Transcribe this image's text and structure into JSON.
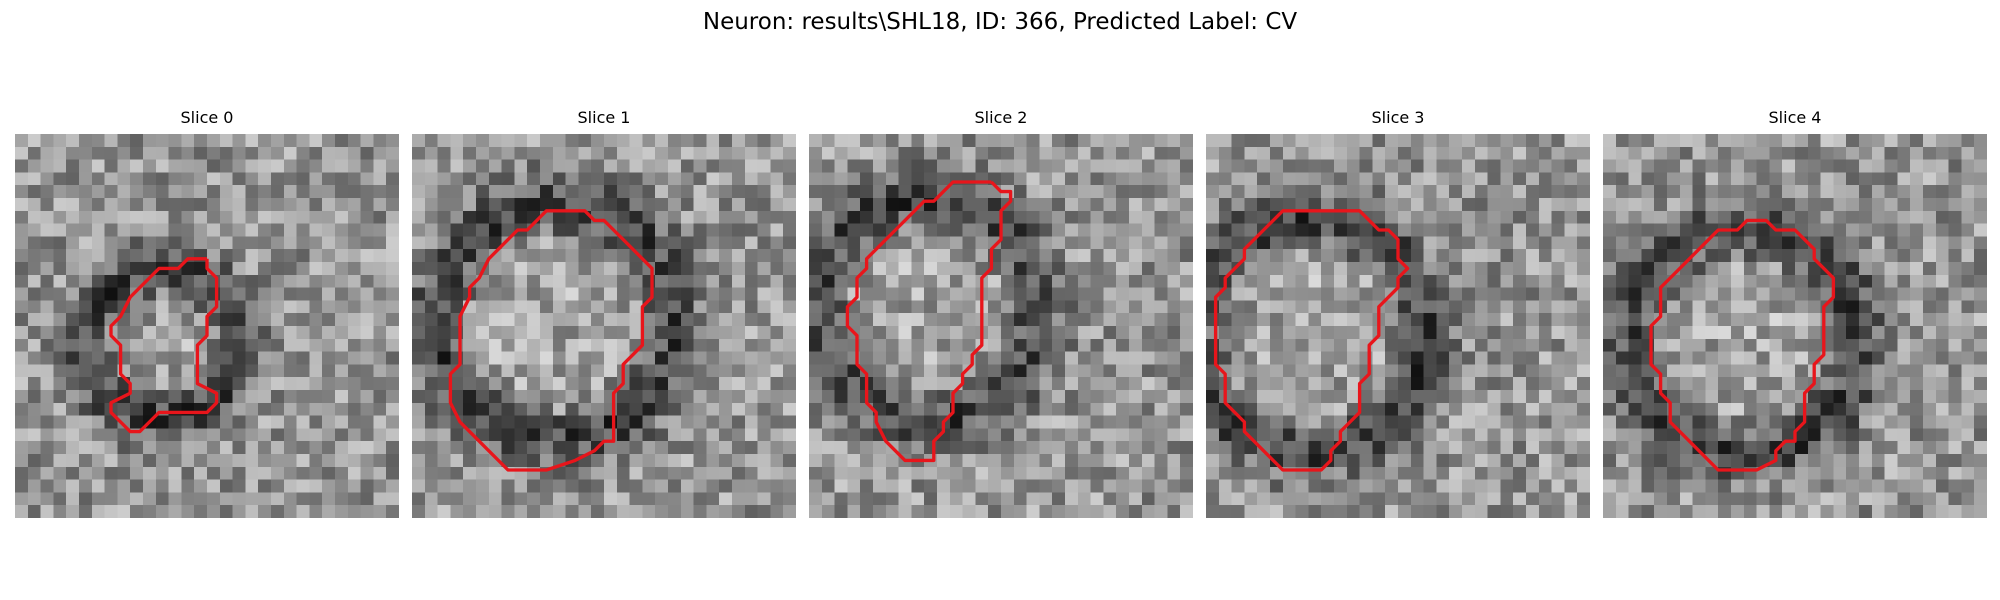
{
  "figure": {
    "title": "Neuron: results\\SHL18, ID: 366, Predicted Label: CV",
    "contour_color": "#e8151b"
  },
  "slices": [
    {
      "label": "Slice 0",
      "contour": [
        [
          20,
          13
        ],
        [
          20,
          14
        ],
        [
          21,
          15
        ],
        [
          21,
          18
        ],
        [
          20,
          19
        ],
        [
          20,
          21
        ],
        [
          19,
          22
        ],
        [
          19,
          26
        ],
        [
          21,
          27
        ],
        [
          21,
          28
        ],
        [
          20,
          29
        ],
        [
          15,
          29
        ],
        [
          14,
          30
        ],
        [
          13,
          31
        ],
        [
          12,
          31
        ],
        [
          10,
          29
        ],
        [
          10,
          28
        ],
        [
          12,
          27
        ],
        [
          12,
          26
        ],
        [
          11,
          25
        ],
        [
          11,
          22
        ],
        [
          10,
          21
        ],
        [
          10,
          20
        ],
        [
          11,
          19
        ],
        [
          12,
          17
        ],
        [
          13,
          16
        ],
        [
          14,
          15
        ],
        [
          15,
          14
        ],
        [
          17,
          14
        ],
        [
          18,
          13
        ]
      ]
    },
    {
      "label": "Slice 1",
      "contour": [
        [
          17,
          8
        ],
        [
          18,
          8
        ],
        [
          19,
          9
        ],
        [
          20,
          9
        ],
        [
          21,
          10
        ],
        [
          22,
          11
        ],
        [
          23,
          12
        ],
        [
          24,
          13
        ],
        [
          25,
          14
        ],
        [
          25,
          17
        ],
        [
          24,
          18
        ],
        [
          24,
          22
        ],
        [
          23,
          23
        ],
        [
          22,
          24
        ],
        [
          22,
          26
        ],
        [
          21,
          27
        ],
        [
          21,
          32
        ],
        [
          20,
          32
        ],
        [
          19,
          33
        ],
        [
          17,
          34
        ],
        [
          14,
          35
        ],
        [
          10,
          35
        ],
        [
          8,
          33
        ],
        [
          6,
          31
        ],
        [
          5,
          30
        ],
        [
          4,
          28
        ],
        [
          4,
          25
        ],
        [
          5,
          24
        ],
        [
          5,
          19
        ],
        [
          6,
          17
        ],
        [
          6,
          16
        ],
        [
          7,
          15
        ],
        [
          8,
          13
        ],
        [
          9,
          12
        ],
        [
          10,
          11
        ],
        [
          11,
          10
        ],
        [
          12,
          10
        ],
        [
          13,
          9
        ],
        [
          14,
          8
        ]
      ]
    },
    {
      "label": "Slice 2",
      "contour": [
        [
          19,
          5
        ],
        [
          20,
          6
        ],
        [
          21,
          6
        ],
        [
          21,
          7
        ],
        [
          20,
          8
        ],
        [
          20,
          11
        ],
        [
          19,
          12
        ],
        [
          19,
          14
        ],
        [
          18,
          15
        ],
        [
          18,
          22
        ],
        [
          17,
          23
        ],
        [
          17,
          24
        ],
        [
          16,
          25
        ],
        [
          16,
          26
        ],
        [
          15,
          27
        ],
        [
          15,
          29
        ],
        [
          14,
          30
        ],
        [
          14,
          31
        ],
        [
          13,
          32
        ],
        [
          13,
          34
        ],
        [
          10,
          34
        ],
        [
          9,
          33
        ],
        [
          8,
          32
        ],
        [
          7,
          30
        ],
        [
          7,
          29
        ],
        [
          6,
          28
        ],
        [
          6,
          25
        ],
        [
          5,
          24
        ],
        [
          5,
          21
        ],
        [
          4,
          20
        ],
        [
          4,
          18
        ],
        [
          5,
          17
        ],
        [
          5,
          15
        ],
        [
          6,
          14
        ],
        [
          6,
          13
        ],
        [
          7,
          12
        ],
        [
          8,
          11
        ],
        [
          9,
          10
        ],
        [
          10,
          9
        ],
        [
          11,
          8
        ],
        [
          12,
          7
        ],
        [
          13,
          7
        ],
        [
          14,
          6
        ],
        [
          15,
          5
        ],
        [
          16,
          5
        ]
      ]
    },
    {
      "label": "Slice 3",
      "contour": [
        [
          15,
          8
        ],
        [
          16,
          8
        ],
        [
          18,
          10
        ],
        [
          19,
          10
        ],
        [
          20,
          11
        ],
        [
          20,
          13
        ],
        [
          21,
          14
        ],
        [
          20,
          15
        ],
        [
          20,
          16
        ],
        [
          19,
          17
        ],
        [
          18,
          18
        ],
        [
          18,
          21
        ],
        [
          17,
          22
        ],
        [
          17,
          25
        ],
        [
          16,
          26
        ],
        [
          16,
          29
        ],
        [
          15,
          30
        ],
        [
          14,
          31
        ],
        [
          14,
          32
        ],
        [
          13,
          33
        ],
        [
          13,
          34
        ],
        [
          12,
          35
        ],
        [
          8,
          35
        ],
        [
          7,
          34
        ],
        [
          6,
          33
        ],
        [
          5,
          32
        ],
        [
          4,
          31
        ],
        [
          4,
          30
        ],
        [
          3,
          29
        ],
        [
          2,
          28
        ],
        [
          2,
          25
        ],
        [
          1,
          24
        ],
        [
          1,
          17
        ],
        [
          2,
          16
        ],
        [
          2,
          15
        ],
        [
          3,
          14
        ],
        [
          4,
          13
        ],
        [
          4,
          12
        ],
        [
          5,
          11
        ],
        [
          6,
          10
        ],
        [
          7,
          9
        ],
        [
          8,
          8
        ]
      ]
    },
    {
      "label": "Slice 4",
      "contour": [
        [
          21,
          11
        ],
        [
          22,
          12
        ],
        [
          22,
          13
        ],
        [
          23,
          14
        ],
        [
          24,
          15
        ],
        [
          24,
          17
        ],
        [
          23,
          18
        ],
        [
          23,
          23
        ],
        [
          22,
          24
        ],
        [
          22,
          26
        ],
        [
          21,
          27
        ],
        [
          21,
          30
        ],
        [
          20,
          31
        ],
        [
          20,
          32
        ],
        [
          19,
          32
        ],
        [
          18,
          33
        ],
        [
          18,
          34
        ],
        [
          16,
          35
        ],
        [
          12,
          35
        ],
        [
          11,
          34
        ],
        [
          10,
          33
        ],
        [
          9,
          32
        ],
        [
          8,
          31
        ],
        [
          7,
          30
        ],
        [
          7,
          28
        ],
        [
          6,
          27
        ],
        [
          6,
          25
        ],
        [
          5,
          24
        ],
        [
          5,
          20
        ],
        [
          6,
          19
        ],
        [
          6,
          16
        ],
        [
          7,
          15
        ],
        [
          8,
          14
        ],
        [
          9,
          13
        ],
        [
          10,
          12
        ],
        [
          11,
          11
        ],
        [
          12,
          10
        ],
        [
          14,
          10
        ],
        [
          15,
          9
        ],
        [
          17,
          9
        ],
        [
          18,
          10
        ],
        [
          20,
          10
        ]
      ]
    }
  ]
}
